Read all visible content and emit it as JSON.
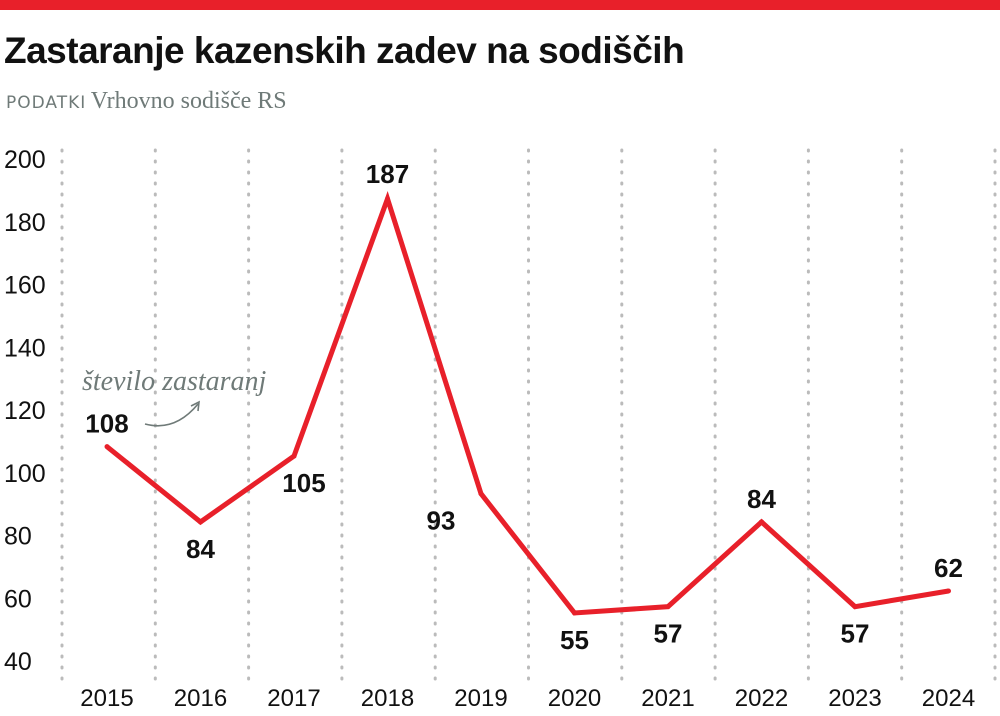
{
  "title": "Zastaranje kazenskih zadev na sodiščih",
  "source_label": "PODATKI",
  "source": "Vrhovno sodišče RS",
  "colors": {
    "accent": "#e8202a",
    "text": "#111111",
    "muted": "#6f7a78",
    "grid": "#bbbbbb"
  },
  "chart_data": {
    "type": "line",
    "categories": [
      "2015",
      "2016",
      "2017",
      "2018",
      "2019",
      "2020",
      "2021",
      "2022",
      "2023",
      "2024"
    ],
    "values": [
      108,
      84,
      105,
      187,
      93,
      55,
      57,
      84,
      57,
      62
    ],
    "yticks": [
      "40",
      "60",
      "80",
      "100",
      "120",
      "140",
      "160",
      "180",
      "200"
    ],
    "ylim": [
      40,
      200
    ],
    "annotation": "število zastaranj",
    "grid": "vertical dotted"
  }
}
